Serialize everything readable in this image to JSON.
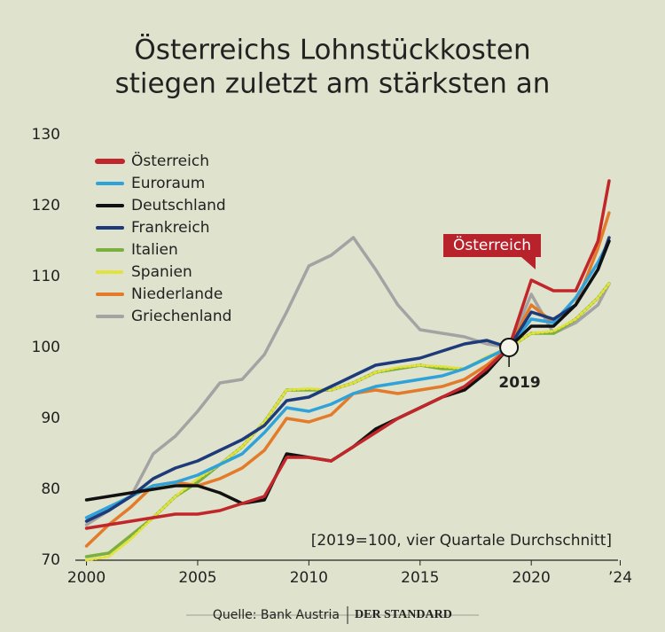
{
  "chart_data": {
    "type": "line",
    "title": [
      "Österreichs Lohnstückkosten",
      "stiegen zuletzt am stärksten an"
    ],
    "x": [
      2000,
      2001,
      2002,
      2003,
      2004,
      2005,
      2006,
      2007,
      2008,
      2009,
      2010,
      2011,
      2012,
      2013,
      2014,
      2015,
      2016,
      2017,
      2018,
      2019,
      2020,
      2021,
      2022,
      2023,
      2023.5
    ],
    "series": [
      {
        "name": "Griechenland",
        "color": "#a3a3a3",
        "values": [
          75,
          77,
          79,
          85,
          87.5,
          91,
          95,
          95.5,
          99,
          105,
          111.5,
          113,
          115.5,
          111,
          106,
          102.5,
          102,
          101.5,
          100.5,
          100,
          107.5,
          102,
          103.5,
          106,
          109
        ]
      },
      {
        "name": "Italien",
        "color": "#7bb03c",
        "values": [
          70.5,
          71,
          73.5,
          76,
          79,
          81,
          83.5,
          86,
          89.5,
          94,
          94,
          94,
          95,
          96.5,
          97,
          97.5,
          97,
          97,
          98.5,
          100,
          102,
          102,
          104,
          107,
          109
        ]
      },
      {
        "name": "Spanien",
        "color": "#e3e23a",
        "values": [
          70,
          70.5,
          73,
          76,
          79,
          81.5,
          83.5,
          86,
          89.5,
          94,
          94.2,
          94,
          95,
          96.5,
          97.2,
          97.5,
          97.3,
          97,
          98.7,
          100,
          102,
          102.3,
          104,
          107,
          109
        ]
      },
      {
        "name": "Niederlande",
        "color": "#e37b2a",
        "values": [
          72,
          75,
          77.5,
          80.5,
          81,
          80.5,
          81.5,
          83,
          85.5,
          90,
          89.5,
          90.5,
          93.5,
          94,
          93.5,
          94,
          94.5,
          95.5,
          97.5,
          100,
          106,
          103.5,
          106,
          114,
          119
        ]
      },
      {
        "name": "Euroraum",
        "color": "#2fa3d9",
        "values": [
          76,
          77.5,
          79,
          80.5,
          81,
          82,
          83.5,
          85,
          88,
          91.5,
          91,
          92,
          93.5,
          94.5,
          95,
          95.5,
          96,
          97,
          98.5,
          100,
          104,
          103.5,
          107,
          112,
          115
        ]
      },
      {
        "name": "Frankreich",
        "color": "#1d3a7a",
        "values": [
          75.5,
          77,
          79,
          81.5,
          83,
          84,
          85.5,
          87,
          89,
          92.5,
          93,
          94.5,
          96,
          97.5,
          98,
          98.5,
          99.5,
          100.5,
          101,
          100,
          105,
          104,
          106,
          111,
          115.5
        ]
      },
      {
        "name": "Deutschland",
        "color": "#111111",
        "values": [
          78.5,
          79,
          79.5,
          80,
          80.5,
          80.5,
          79.5,
          78,
          78.5,
          85,
          84.5,
          84,
          86,
          88.5,
          90,
          91.5,
          93,
          94,
          96.5,
          100,
          103,
          103,
          106,
          111,
          115
        ]
      },
      {
        "name": "Österreich",
        "color": "#c0262a",
        "values": [
          74.5,
          75,
          75.5,
          76,
          76.5,
          76.5,
          77,
          78,
          79,
          84.5,
          84.5,
          84,
          86,
          88,
          90,
          91.5,
          93,
          94.5,
          97,
          100,
          109.5,
          108,
          108,
          115,
          123.5
        ]
      }
    ],
    "legend_order": [
      7,
      4,
      6,
      5,
      1,
      2,
      3,
      0
    ],
    "xlim": [
      1999.5,
      2023.9
    ],
    "xticks": [
      2000,
      2005,
      2010,
      2015,
      2020,
      {
        "value": 2024,
        "label": "’24"
      }
    ],
    "ylim": [
      70,
      130
    ],
    "yticks": [
      70,
      80,
      90,
      100,
      110,
      120,
      130
    ],
    "grid": false,
    "legend": "upper left",
    "callout": "Österreich",
    "reference_point": {
      "x": 2019,
      "y": 100,
      "label": "2019"
    },
    "note": "[2019=100, vier Quartale Durchschnitt]",
    "source": "Quelle: Bank Austria",
    "publisher": "DER STANDARD"
  }
}
